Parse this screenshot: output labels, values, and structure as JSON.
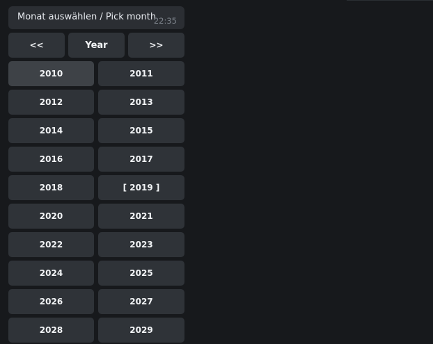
{
  "message": {
    "text": "Monat auswählen / Pick month",
    "time": "22:35"
  },
  "nav": {
    "prev": "<<",
    "mode": "Year",
    "next": ">>"
  },
  "years": [
    "2010",
    "2011",
    "2012",
    "2013",
    "2014",
    "2015",
    "2016",
    "2017",
    "2018",
    "[ 2019 ]",
    "2020",
    "2021",
    "2022",
    "2023",
    "2024",
    "2025",
    "2026",
    "2027",
    "2028",
    "2029"
  ]
}
